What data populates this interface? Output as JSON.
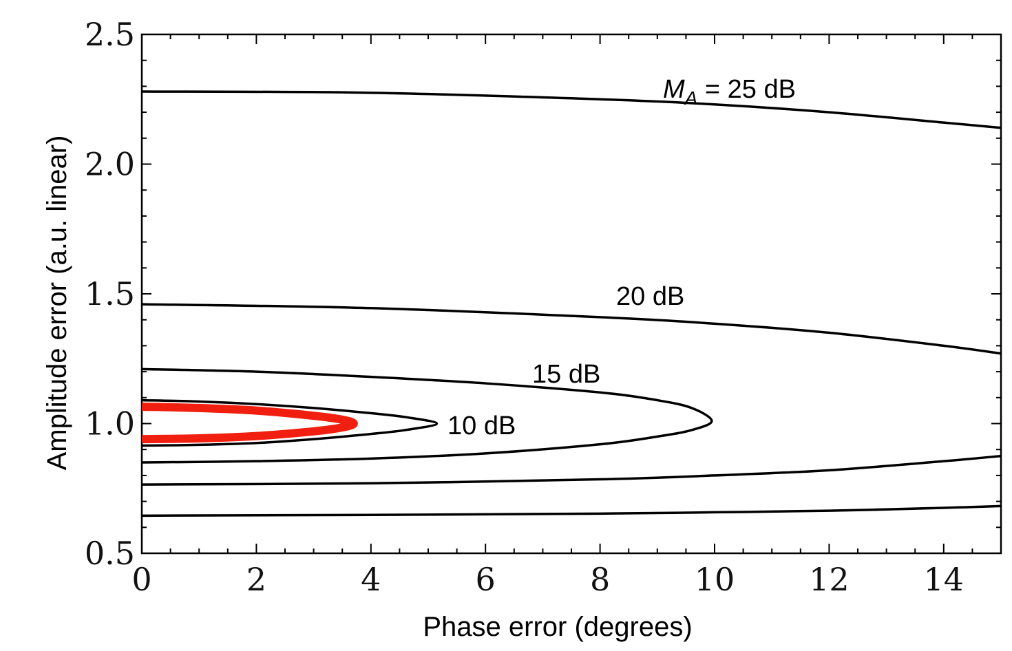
{
  "chart_data": {
    "type": "line",
    "title": "",
    "xlabel": "Phase error (degrees)",
    "ylabel": "Amplitude error (a.u. linear)",
    "xlim": [
      0,
      15
    ],
    "ylim": [
      0.5,
      2.5
    ],
    "x_ticks": [
      0,
      2,
      4,
      6,
      8,
      10,
      12,
      14
    ],
    "x_tick_labels": [
      "0",
      "2",
      "4",
      "6",
      "8",
      "10",
      "12",
      "14"
    ],
    "y_ticks": [
      0.5,
      1.0,
      1.5,
      2.0,
      2.5
    ],
    "y_tick_labels": [
      "0.5",
      "1.0",
      "1.5",
      "2.0",
      "2.5"
    ],
    "grid": false,
    "series": [
      {
        "label_text": "10 dB",
        "color": "#000000",
        "upper": [
          [
            0,
            1.09
          ],
          [
            1,
            1.085
          ],
          [
            2,
            1.075
          ],
          [
            3,
            1.06
          ],
          [
            4,
            1.04
          ],
          [
            4.6,
            1.025
          ],
          [
            5.15,
            1.0
          ]
        ],
        "lower": [
          [
            0,
            0.915
          ],
          [
            1,
            0.918
          ],
          [
            2,
            0.925
          ],
          [
            3,
            0.94
          ],
          [
            4,
            0.96
          ],
          [
            4.6,
            0.975
          ],
          [
            5.15,
            1.0
          ]
        ]
      },
      {
        "label_text": "15 dB",
        "color": "#000000",
        "upper": [
          [
            0,
            1.21
          ],
          [
            2,
            1.2
          ],
          [
            4,
            1.18
          ],
          [
            6,
            1.155
          ],
          [
            8,
            1.12
          ],
          [
            9,
            1.09
          ],
          [
            9.6,
            1.06
          ],
          [
            9.95,
            1.01
          ]
        ],
        "lower": [
          [
            0,
            0.85
          ],
          [
            2,
            0.855
          ],
          [
            4,
            0.865
          ],
          [
            6,
            0.885
          ],
          [
            8,
            0.92
          ],
          [
            9,
            0.95
          ],
          [
            9.6,
            0.975
          ],
          [
            9.95,
            1.01
          ]
        ]
      },
      {
        "label_text": "20 dB",
        "color": "#000000",
        "upper": [
          [
            0,
            1.46
          ],
          [
            4,
            1.445
          ],
          [
            8,
            1.41
          ],
          [
            10,
            1.385
          ],
          [
            12,
            1.35
          ],
          [
            14,
            1.3
          ],
          [
            15,
            1.27
          ]
        ],
        "lower": [
          [
            0,
            0.765
          ],
          [
            4,
            0.77
          ],
          [
            8,
            0.785
          ],
          [
            10,
            0.8
          ],
          [
            12,
            0.82
          ],
          [
            14,
            0.855
          ],
          [
            15,
            0.875
          ]
        ]
      },
      {
        "label_text": "25 dB",
        "label_prefix": "M",
        "label_subscript": "A",
        "label_suffix": " = 25 dB",
        "color": "#000000",
        "upper": [
          [
            0,
            2.28
          ],
          [
            4,
            2.275
          ],
          [
            8,
            2.25
          ],
          [
            10,
            2.23
          ],
          [
            12,
            2.2
          ],
          [
            14,
            2.16
          ],
          [
            15,
            2.14
          ]
        ],
        "lower": [
          [
            0,
            0.645
          ],
          [
            4,
            0.648
          ],
          [
            8,
            0.653
          ],
          [
            10,
            0.658
          ],
          [
            12,
            0.664
          ],
          [
            14,
            0.675
          ],
          [
            15,
            0.682
          ]
        ]
      },
      {
        "label_text": "",
        "color": "#f01f10",
        "upper": [
          [
            0,
            1.065
          ],
          [
            1,
            1.06
          ],
          [
            2,
            1.05
          ],
          [
            3,
            1.03
          ],
          [
            3.5,
            1.015
          ],
          [
            3.7,
            1.0
          ]
        ],
        "lower": [
          [
            0,
            0.94
          ],
          [
            1,
            0.943
          ],
          [
            2,
            0.952
          ],
          [
            3,
            0.97
          ],
          [
            3.5,
            0.985
          ],
          [
            3.7,
            1.0
          ]
        ]
      }
    ]
  }
}
